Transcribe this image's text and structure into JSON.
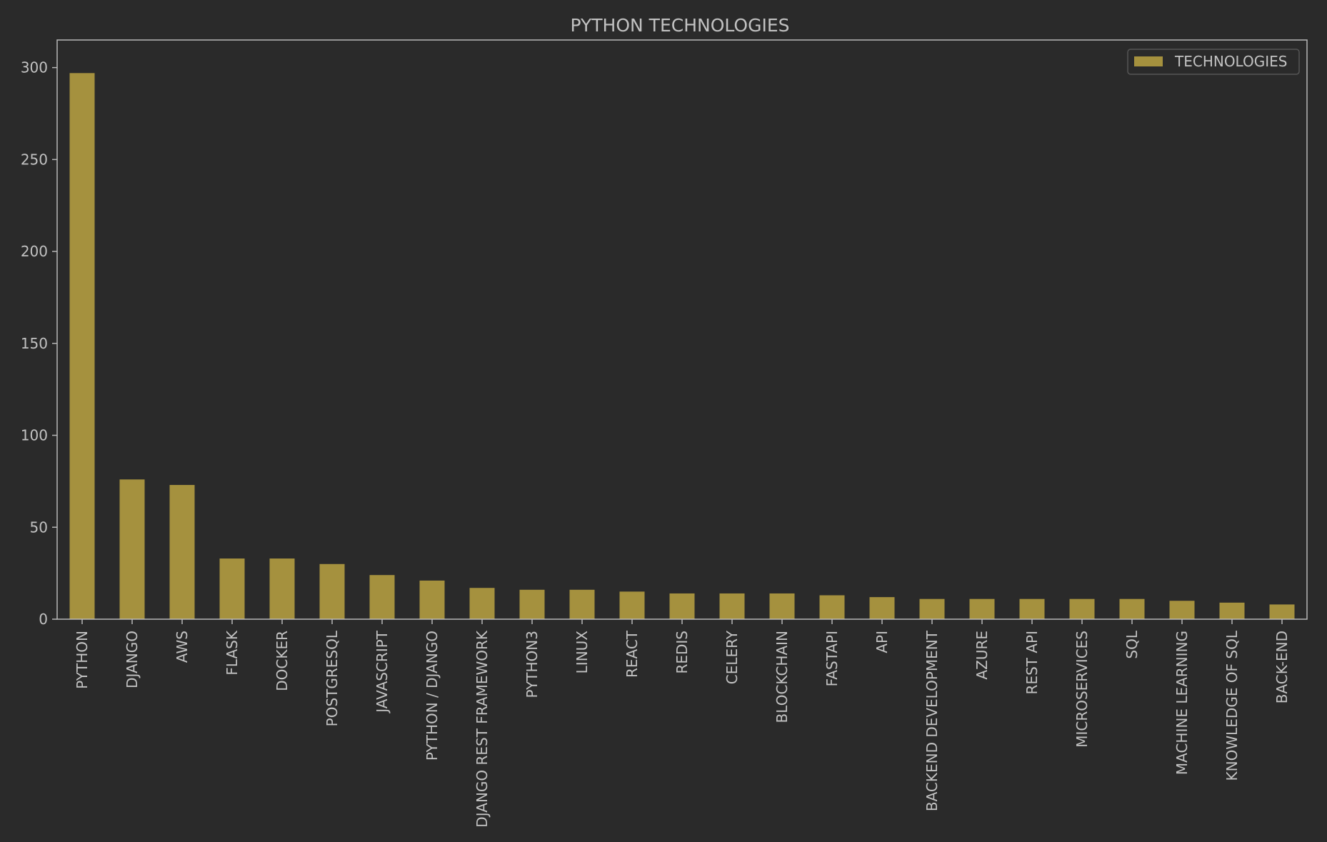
{
  "chart_data": {
    "type": "bar",
    "title": "PYTHON TECHNOLOGIES",
    "xlabel": "",
    "ylabel": "",
    "ylim": [
      0,
      315
    ],
    "yticks": [
      0,
      50,
      100,
      150,
      200,
      250,
      300
    ],
    "categories": [
      "PYTHON",
      "DJANGO",
      "AWS",
      "FLASK",
      "DOCKER",
      "POSTGRESQL",
      "JAVASCRIPT",
      "PYTHON / DJANGO",
      "DJANGO REST FRAMEWORK",
      "PYTHON3",
      "LINUX",
      "REACT",
      "REDIS",
      "CELERY",
      "BLOCKCHAIN",
      "FASTAPI",
      "API",
      "BACKEND DEVELOPMENT",
      "AZURE",
      "REST API",
      "MICROSERVICES",
      "SQL",
      "MACHINE LEARNING",
      "KNOWLEDGE OF SQL",
      "BACK-END"
    ],
    "series": [
      {
        "name": "TECHNOLOGIES",
        "values": [
          297,
          76,
          73,
          33,
          33,
          30,
          24,
          21,
          17,
          16,
          16,
          15,
          14,
          14,
          14,
          13,
          12,
          11,
          11,
          11,
          11,
          11,
          10,
          9,
          8
        ]
      }
    ],
    "legend_position": "top-right",
    "grid": false
  },
  "colors": {
    "background": "#2a2a2a",
    "bar": "#a5913e",
    "axis": "#b8b8b8",
    "text": "#c2c2c2",
    "legend_border": "#555555"
  }
}
